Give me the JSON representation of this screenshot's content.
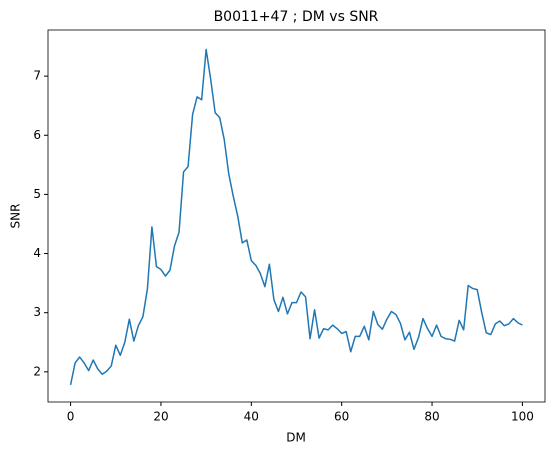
{
  "chart_data": {
    "type": "line",
    "title": "B0011+47 ; DM vs SNR",
    "xlabel": "DM",
    "ylabel": "SNR",
    "x": [
      0,
      1,
      2,
      3,
      4,
      5,
      6,
      7,
      8,
      9,
      10,
      11,
      12,
      13,
      14,
      15,
      16,
      17,
      18,
      19,
      20,
      21,
      22,
      23,
      24,
      25,
      26,
      27,
      28,
      29,
      30,
      31,
      32,
      33,
      34,
      35,
      36,
      37,
      38,
      39,
      40,
      41,
      42,
      43,
      44,
      45,
      46,
      47,
      48,
      49,
      50,
      51,
      52,
      53,
      54,
      55,
      56,
      57,
      58,
      59,
      60,
      61,
      62,
      63,
      64,
      65,
      66,
      67,
      68,
      69,
      70,
      71,
      72,
      73,
      74,
      75,
      76,
      77,
      78,
      79,
      80,
      81,
      82,
      83,
      84,
      85,
      86,
      87,
      88,
      89,
      90,
      91,
      92,
      93,
      94,
      95,
      96,
      97,
      98,
      99,
      100
    ],
    "series": [
      {
        "name": "SNR",
        "color": "#1f77b4",
        "values": [
          1.78,
          2.15,
          2.25,
          2.15,
          2.02,
          2.2,
          2.05,
          1.96,
          2.01,
          2.1,
          2.45,
          2.28,
          2.5,
          2.89,
          2.52,
          2.78,
          2.93,
          3.4,
          4.45,
          3.78,
          3.73,
          3.62,
          3.72,
          4.13,
          4.36,
          5.38,
          5.47,
          6.35,
          6.65,
          6.6,
          7.45,
          6.95,
          6.38,
          6.3,
          5.93,
          5.35,
          4.97,
          4.63,
          4.18,
          4.23,
          3.88,
          3.8,
          3.66,
          3.44,
          3.82,
          3.22,
          3.02,
          3.26,
          2.98,
          3.17,
          3.17,
          3.35,
          3.27,
          2.56,
          3.05,
          2.57,
          2.73,
          2.71,
          2.79,
          2.73,
          2.65,
          2.68,
          2.34,
          2.6,
          2.6,
          2.77,
          2.54,
          3.02,
          2.8,
          2.72,
          2.89,
          3.02,
          2.97,
          2.82,
          2.54,
          2.67,
          2.38,
          2.58,
          2.9,
          2.73,
          2.6,
          2.79,
          2.6,
          2.56,
          2.55,
          2.52,
          2.87,
          2.71,
          3.46,
          3.41,
          3.39,
          3.0,
          2.66,
          2.63,
          2.81,
          2.86,
          2.78,
          2.81,
          2.9,
          2.83,
          2.79
        ]
      }
    ],
    "xlim": [
      -5,
      105
    ],
    "ylim": [
      1.49,
      7.78
    ],
    "xticks": [
      0,
      20,
      40,
      60,
      80,
      100
    ],
    "yticks": [
      2,
      3,
      4,
      5,
      6,
      7
    ],
    "grid": false
  }
}
